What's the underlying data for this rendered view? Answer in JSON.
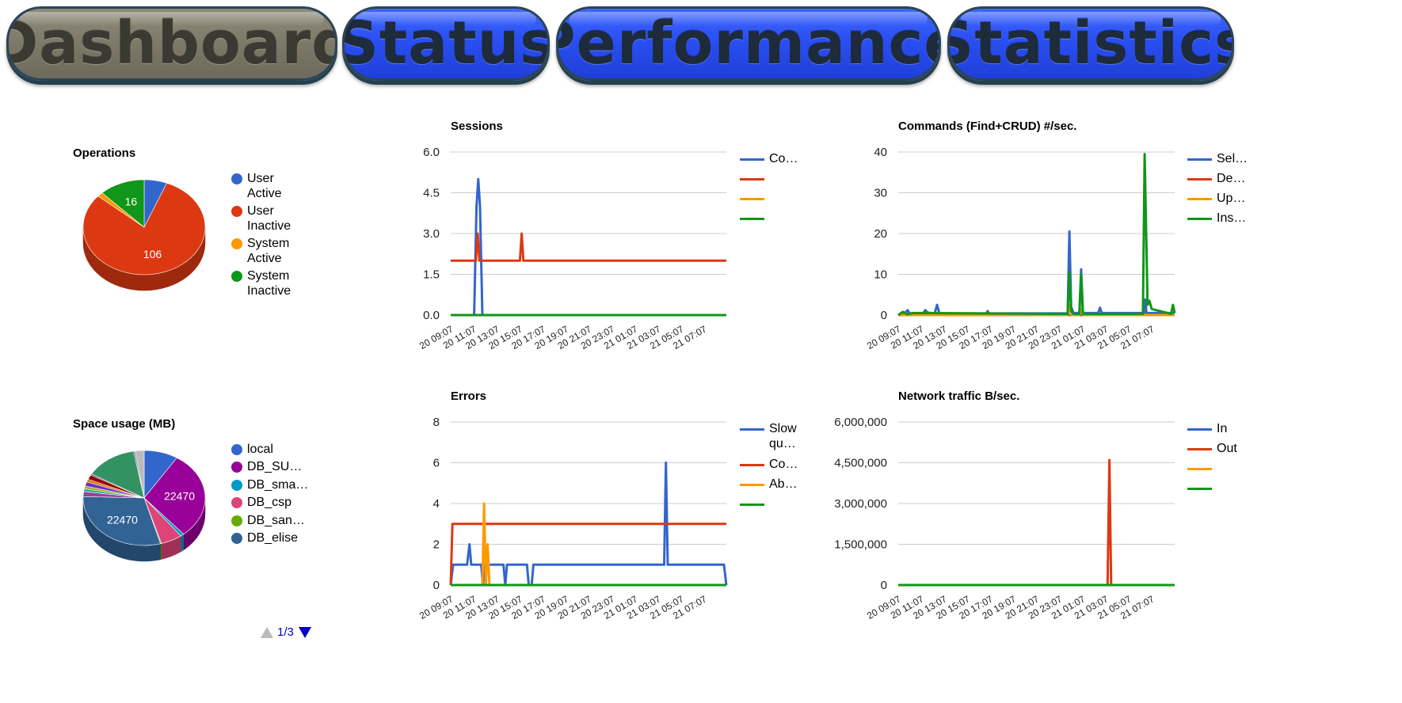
{
  "tabs": [
    {
      "label": "Dashboard",
      "active": true
    },
    {
      "label": "Status",
      "active": false
    },
    {
      "label": "Performance",
      "active": false
    },
    {
      "label": "Statistics",
      "active": false
    }
  ],
  "colors": {
    "blue": "#3366cc",
    "red": "#dc3912",
    "orange": "#ff9900",
    "green": "#109618",
    "purple": "#990099",
    "teal": "#0099c6",
    "pink": "#dd4477",
    "lime": "#66aa00",
    "navy": "#316395",
    "tab_inactive": "#2a4ff2",
    "tab_active": "#7d7968",
    "grid": "#cccccc"
  },
  "operations": {
    "title": "Operations",
    "legend": [
      {
        "label": "User Active",
        "color": "#3366cc"
      },
      {
        "label": "User Inactive",
        "color": "#dc3912"
      },
      {
        "label": "System Active",
        "color": "#ff9900"
      },
      {
        "label": "System Inactive",
        "color": "#109618"
      }
    ]
  },
  "space": {
    "title": "Space usage (MB)",
    "legend": [
      {
        "label": "local",
        "color": "#3366cc"
      },
      {
        "label": "DB_SU…",
        "color": "#990099"
      },
      {
        "label": "DB_sma…",
        "color": "#0099c6"
      },
      {
        "label": "DB_csp",
        "color": "#dd4477"
      },
      {
        "label": "DB_san…",
        "color": "#66aa00"
      },
      {
        "label": "DB_elise",
        "color": "#316395"
      }
    ],
    "pager": "1/3"
  },
  "sessions": {
    "title": "Sessions",
    "legend": [
      {
        "label": "Co…",
        "color": "#3366cc"
      },
      {
        "label": "",
        "color": "#dc3912"
      },
      {
        "label": "",
        "color": "#ff9900"
      },
      {
        "label": "",
        "color": "#109618"
      }
    ]
  },
  "commands": {
    "title": "Commands (Find+CRUD) #/sec.",
    "legend": [
      {
        "label": "Sel…",
        "color": "#3366cc"
      },
      {
        "label": "De…",
        "color": "#dc3912"
      },
      {
        "label": "Up…",
        "color": "#ff9900"
      },
      {
        "label": "Ins…",
        "color": "#109618"
      }
    ]
  },
  "errors": {
    "title": "Errors",
    "legend": [
      {
        "label": "Slow qu…",
        "color": "#3366cc"
      },
      {
        "label": "Co…",
        "color": "#dc3912"
      },
      {
        "label": "Ab…",
        "color": "#ff9900"
      },
      {
        "label": "",
        "color": "#109618"
      }
    ]
  },
  "network": {
    "title": "Network traffic B/sec.",
    "legend": [
      {
        "label": "In",
        "color": "#3366cc"
      },
      {
        "label": "Out",
        "color": "#dc3912"
      },
      {
        "label": "",
        "color": "#ff9900"
      },
      {
        "label": "",
        "color": "#109618"
      }
    ]
  },
  "chart_data": [
    {
      "id": "operations",
      "type": "pie",
      "title": "Operations",
      "style": "3d",
      "slices": [
        {
          "label": "User Active",
          "value": 8,
          "color": "#3366cc"
        },
        {
          "label": "User Inactive",
          "value": 106,
          "color": "#dc3912",
          "data_label": "106"
        },
        {
          "label": "System Active",
          "value": 2,
          "color": "#ff9900"
        },
        {
          "label": "System Inactive",
          "value": 16,
          "color": "#109618",
          "data_label": "16"
        }
      ]
    },
    {
      "id": "space",
      "type": "pie",
      "title": "Space usage (MB)",
      "style": "3d",
      "slices": [
        {
          "label": "local",
          "value": 6800,
          "color": "#3366cc"
        },
        {
          "label": "DB_SU…",
          "value": 22470,
          "color": "#990099",
          "data_label": "22470"
        },
        {
          "label": "DB_sma…",
          "value": 700,
          "color": "#0099c6"
        },
        {
          "label": "DB_csp",
          "value": 4300,
          "color": "#dd4477"
        },
        {
          "label": "DB_san…",
          "value": 200,
          "color": "#66aa00"
        },
        {
          "label": "DB_elise",
          "value": 22470,
          "color": "#316395",
          "data_label": "22470"
        },
        {
          "label": "",
          "value": 1300,
          "color": "#994499"
        },
        {
          "label": "",
          "value": 700,
          "color": "#22aa99"
        },
        {
          "label": "",
          "value": 700,
          "color": "#aaaa11"
        },
        {
          "label": "",
          "value": 1100,
          "color": "#6633cc"
        },
        {
          "label": "",
          "value": 700,
          "color": "#e67300"
        },
        {
          "label": "",
          "value": 1200,
          "color": "#8b0707"
        },
        {
          "label": "",
          "value": 300,
          "color": "#651067"
        },
        {
          "label": "",
          "value": 10400,
          "color": "#329262"
        },
        {
          "label": "",
          "value": 300,
          "color": "#5574a6"
        },
        {
          "label": "",
          "value": 1800,
          "color": "#bbbbbb"
        }
      ]
    },
    {
      "id": "sessions",
      "type": "line",
      "title": "Sessions",
      "x_ticks": [
        "20 09:07",
        "20 11:07",
        "20 13:07",
        "20 15:07",
        "20 17:07",
        "20 19:07",
        "20 21:07",
        "20 23:07",
        "21 01:07",
        "21 03:07",
        "21 05:07",
        "21 07:07"
      ],
      "x_range": [
        0,
        23.5
      ],
      "y_ticks": [
        "0.0",
        "1.5",
        "3.0",
        "4.5",
        "6.0"
      ],
      "ylim": [
        0,
        6
      ],
      "series": [
        {
          "name": "Co…",
          "color": "#3366cc",
          "points": [
            [
              0,
              0
            ],
            [
              2.0,
              0
            ],
            [
              2.2,
              4
            ],
            [
              2.35,
              5
            ],
            [
              2.5,
              4
            ],
            [
              2.7,
              0
            ],
            [
              23.5,
              0
            ]
          ]
        },
        {
          "name": "",
          "color": "#dc3912",
          "points": [
            [
              0,
              2
            ],
            [
              2.15,
              2
            ],
            [
              2.3,
              3
            ],
            [
              2.45,
              2
            ],
            [
              5.9,
              2
            ],
            [
              6.05,
              3
            ],
            [
              6.2,
              2
            ],
            [
              23.5,
              2
            ]
          ]
        },
        {
          "name": "",
          "color": "#ff9900",
          "points": [
            [
              0,
              0
            ],
            [
              23.5,
              0
            ]
          ]
        },
        {
          "name": "",
          "color": "#109618",
          "points": [
            [
              0,
              0
            ],
            [
              23.5,
              0
            ]
          ]
        }
      ]
    },
    {
      "id": "commands",
      "type": "line",
      "title": "Commands (Find+CRUD) #/sec.",
      "x_ticks": [
        "20 09:07",
        "20 11:07",
        "20 13:07",
        "20 15:07",
        "20 17:07",
        "20 19:07",
        "20 21:07",
        "20 23:07",
        "21 01:07",
        "21 03:07",
        "21 05:07",
        "21 07:07"
      ],
      "x_range": [
        0,
        23.5
      ],
      "y_ticks": [
        "0",
        "10",
        "20",
        "30",
        "40"
      ],
      "ylim": [
        0,
        40
      ],
      "series": [
        {
          "name": "Sel…",
          "color": "#3366cc",
          "points": [
            [
              0,
              0
            ],
            [
              0.6,
              0.6
            ],
            [
              0.8,
              1.2
            ],
            [
              1.0,
              0.3
            ],
            [
              2.1,
              0.4
            ],
            [
              2.3,
              1.2
            ],
            [
              2.5,
              0.6
            ],
            [
              3.1,
              0.4
            ],
            [
              3.3,
              2.5
            ],
            [
              3.5,
              0.4
            ],
            [
              7.5,
              0.4
            ],
            [
              7.6,
              1.0
            ],
            [
              7.7,
              0.4
            ],
            [
              14.4,
              0.4
            ],
            [
              14.55,
              20.5
            ],
            [
              14.7,
              2
            ],
            [
              14.9,
              0.5
            ],
            [
              15.4,
              0.5
            ],
            [
              15.55,
              11.2
            ],
            [
              15.7,
              0.5
            ],
            [
              17.0,
              0.5
            ],
            [
              17.15,
              1.8
            ],
            [
              17.3,
              0.5
            ],
            [
              20.9,
              0.5
            ],
            [
              21.0,
              3.8
            ],
            [
              21.1,
              0.5
            ],
            [
              23.5,
              0.5
            ]
          ]
        },
        {
          "name": "De…",
          "color": "#dc3912",
          "points": [
            [
              0,
              0
            ],
            [
              23.5,
              0
            ]
          ]
        },
        {
          "name": "Up…",
          "color": "#ff9900",
          "points": [
            [
              0,
              0
            ],
            [
              14.4,
              0
            ],
            [
              14.55,
              2.5
            ],
            [
              14.7,
              0
            ],
            [
              15.4,
              0
            ],
            [
              15.55,
              1.5
            ],
            [
              15.7,
              0
            ],
            [
              23.5,
              0
            ]
          ]
        },
        {
          "name": "Ins…",
          "color": "#109618",
          "points": [
            [
              0,
              0
            ],
            [
              0.4,
              0.8
            ],
            [
              0.8,
              0.2
            ],
            [
              1.2,
              0.5
            ],
            [
              14.4,
              0.3
            ],
            [
              14.55,
              10.5
            ],
            [
              14.7,
              1
            ],
            [
              14.9,
              0.3
            ],
            [
              15.4,
              0.3
            ],
            [
              15.55,
              10
            ],
            [
              15.7,
              0.3
            ],
            [
              20.8,
              0.3
            ],
            [
              20.95,
              39.5
            ],
            [
              21.2,
              2.5
            ],
            [
              21.35,
              3.5
            ],
            [
              21.55,
              1.5
            ],
            [
              23.2,
              0.3
            ],
            [
              23.35,
              2.5
            ],
            [
              23.5,
              0.5
            ]
          ]
        }
      ]
    },
    {
      "id": "errors",
      "type": "line",
      "title": "Errors",
      "x_ticks": [
        "20 09:07",
        "20 11:07",
        "20 13:07",
        "20 15:07",
        "20 17:07",
        "20 19:07",
        "20 21:07",
        "20 23:07",
        "21 01:07",
        "21 03:07",
        "21 05:07",
        "21 07:07"
      ],
      "x_range": [
        0,
        23.5
      ],
      "y_ticks": [
        "0",
        "2",
        "4",
        "6",
        "8"
      ],
      "ylim": [
        0,
        8
      ],
      "series": [
        {
          "name": "Slow qu…",
          "color": "#3366cc",
          "points": [
            [
              0,
              0
            ],
            [
              0.2,
              1
            ],
            [
              1.4,
              1
            ],
            [
              1.6,
              2
            ],
            [
              1.75,
              1
            ],
            [
              2.6,
              1
            ],
            [
              2.75,
              0
            ],
            [
              2.9,
              1
            ],
            [
              4.5,
              1
            ],
            [
              4.65,
              0
            ],
            [
              4.8,
              1
            ],
            [
              6.5,
              1
            ],
            [
              6.65,
              0
            ],
            [
              6.9,
              0
            ],
            [
              7.05,
              1
            ],
            [
              18.2,
              1
            ],
            [
              18.35,
              6
            ],
            [
              18.5,
              1
            ],
            [
              23.3,
              1
            ],
            [
              23.5,
              0
            ]
          ]
        },
        {
          "name": "Co…",
          "color": "#dc3912",
          "points": [
            [
              0,
              0
            ],
            [
              0.15,
              3
            ],
            [
              23.5,
              3
            ]
          ]
        },
        {
          "name": "Ab…",
          "color": "#ff9900",
          "points": [
            [
              0,
              0
            ],
            [
              2.7,
              0
            ],
            [
              2.85,
              4
            ],
            [
              3.0,
              0
            ],
            [
              3.15,
              2
            ],
            [
              3.3,
              0
            ],
            [
              23.5,
              0
            ]
          ]
        },
        {
          "name": "",
          "color": "#109618",
          "points": [
            [
              0,
              0
            ],
            [
              23.5,
              0
            ]
          ]
        }
      ]
    },
    {
      "id": "network",
      "type": "line",
      "title": "Network traffic B/sec.",
      "x_ticks": [
        "20 09:07",
        "20 11:07",
        "20 13:07",
        "20 15:07",
        "20 17:07",
        "20 19:07",
        "20 21:07",
        "20 23:07",
        "21 01:07",
        "21 03:07",
        "21 05:07",
        "21 07:07"
      ],
      "x_range": [
        0,
        23.5
      ],
      "y_ticks": [
        "0",
        "1,500,000",
        "3,000,000",
        "4,500,000",
        "6,000,000"
      ],
      "ylim": [
        0,
        6000000
      ],
      "series": [
        {
          "name": "In",
          "color": "#3366cc",
          "points": [
            [
              0,
              0
            ],
            [
              23.5,
              0
            ]
          ]
        },
        {
          "name": "Out",
          "color": "#dc3912",
          "points": [
            [
              0,
              0
            ],
            [
              17.8,
              0
            ],
            [
              17.95,
              4600000
            ],
            [
              18.1,
              0
            ],
            [
              23.5,
              0
            ]
          ]
        },
        {
          "name": "",
          "color": "#ff9900",
          "points": [
            [
              0,
              0
            ],
            [
              23.5,
              0
            ]
          ]
        },
        {
          "name": "",
          "color": "#109618",
          "points": [
            [
              0,
              0
            ],
            [
              23.5,
              0
            ]
          ]
        }
      ]
    }
  ]
}
